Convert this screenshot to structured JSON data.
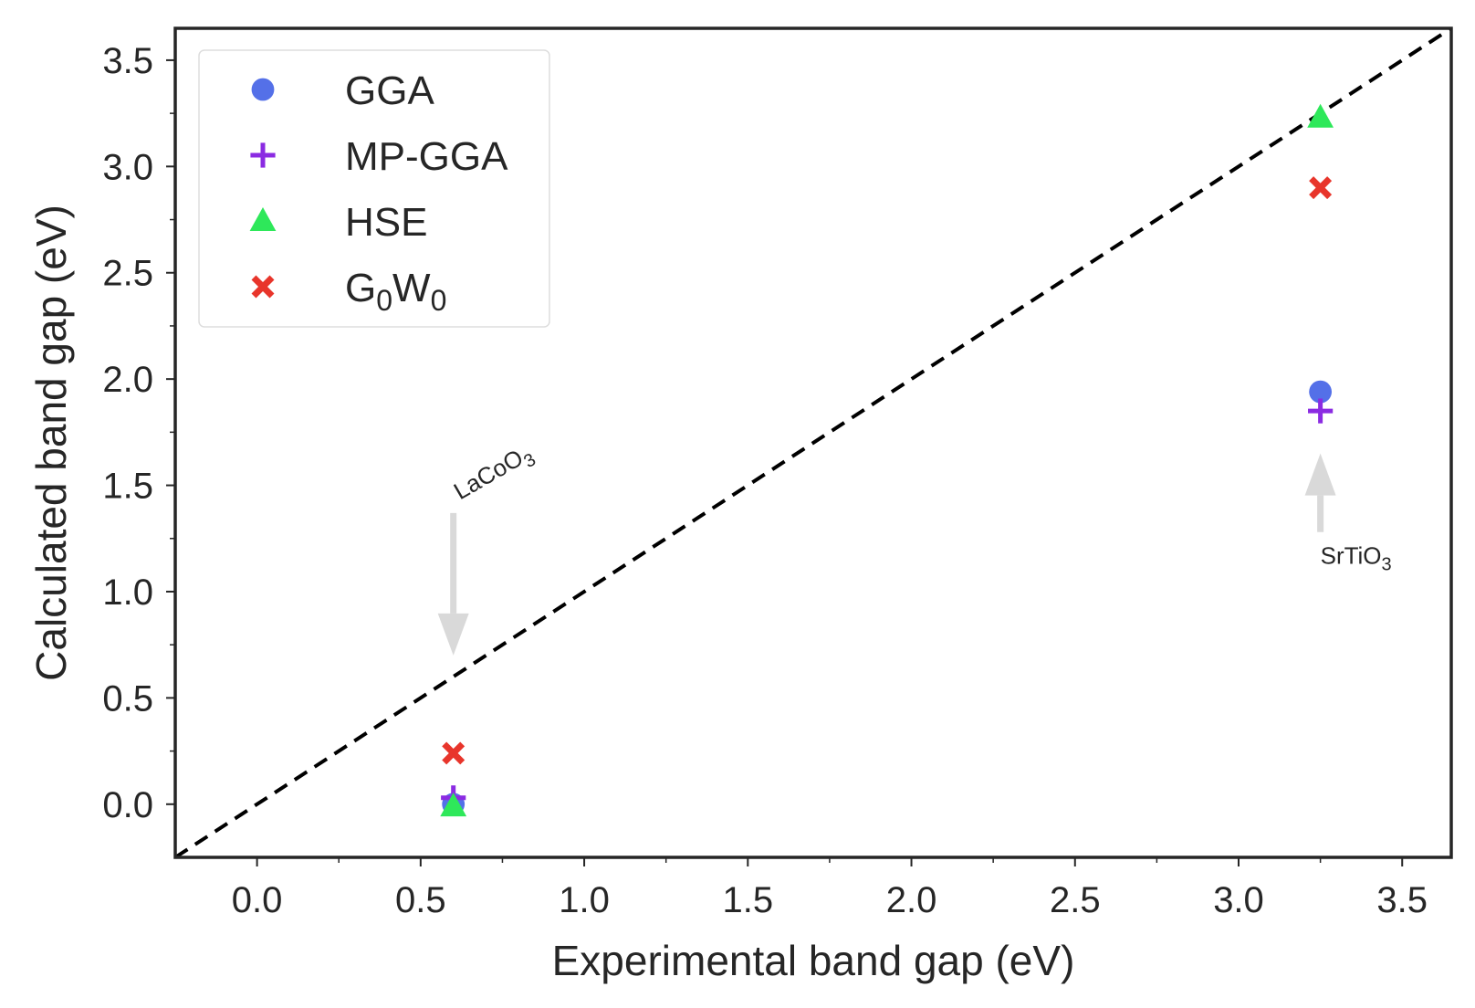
{
  "chart_data": {
    "type": "scatter",
    "xlabel": "Experimental band gap (eV)",
    "ylabel": "Calculated band gap (eV)",
    "xlim": [
      -0.25,
      3.65
    ],
    "ylim": [
      -0.25,
      3.65
    ],
    "xticks": [
      0.0,
      0.5,
      1.0,
      1.5,
      2.0,
      2.5,
      3.0,
      3.5
    ],
    "yticks": [
      0.0,
      0.5,
      1.0,
      1.5,
      2.0,
      2.5,
      3.0,
      3.5
    ],
    "xtick_labels": [
      "0.0",
      "0.5",
      "1.0",
      "1.5",
      "2.0",
      "2.5",
      "3.0",
      "3.5"
    ],
    "ytick_labels": [
      "0.0",
      "0.5",
      "1.0",
      "1.5",
      "2.0",
      "2.5",
      "3.0",
      "3.5"
    ],
    "grid": false,
    "legend_position": "top-left",
    "reference_line": {
      "from": [
        -0.25,
        -0.25
      ],
      "to": [
        3.65,
        3.65
      ],
      "style": "dashed",
      "color": "#000000"
    },
    "series": [
      {
        "name": "GGA",
        "marker": "circle",
        "color": "#5470e8",
        "points": [
          {
            "x": 0.6,
            "y": 0.0
          },
          {
            "x": 3.25,
            "y": 1.94
          }
        ]
      },
      {
        "name": "MP-GGA",
        "marker": "plus",
        "color": "#8b2be2",
        "points": [
          {
            "x": 0.6,
            "y": 0.03
          },
          {
            "x": 3.25,
            "y": 1.85
          }
        ]
      },
      {
        "name": "HSE",
        "marker": "triangle",
        "color": "#2ee85a",
        "points": [
          {
            "x": 0.6,
            "y": -0.01
          },
          {
            "x": 3.25,
            "y": 3.23
          }
        ]
      },
      {
        "name": "G₀W₀",
        "name_base": "G",
        "name_sub1": "0",
        "name_mid": "W",
        "name_sub2": "0",
        "marker": "x",
        "color": "#e8352b",
        "points": [
          {
            "x": 0.6,
            "y": 0.24
          },
          {
            "x": 3.25,
            "y": 2.9
          }
        ]
      }
    ],
    "annotations": [
      {
        "text": "LaCoO₃",
        "text_base": "LaCoO",
        "text_sub": "3",
        "rotation": -30,
        "arrow_from": [
          0.6,
          1.37
        ],
        "arrow_to": [
          0.6,
          0.7
        ],
        "label_anchor": [
          0.62,
          1.43
        ]
      },
      {
        "text": "SrTiO₃",
        "text_base": "SrTiO",
        "text_sub": "3",
        "rotation": 0,
        "arrow_from": [
          3.25,
          1.28
        ],
        "arrow_to": [
          3.25,
          1.65
        ],
        "label_anchor": [
          3.25,
          1.13
        ]
      }
    ],
    "arrow_color": "#d9d9d9"
  }
}
